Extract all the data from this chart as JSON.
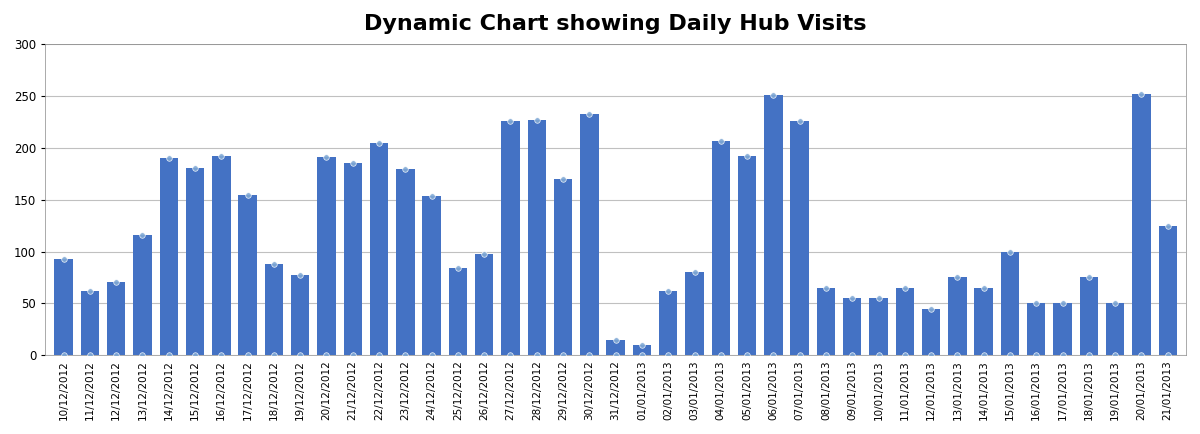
{
  "title": "Dynamic Chart showing Daily Hub Visits",
  "dates": [
    "10/12/2012",
    "11/12/2012",
    "12/12/2012",
    "13/12/2012",
    "14/12/2012",
    "15/12/2012",
    "16/12/2012",
    "17/12/2012",
    "18/12/2012",
    "19/12/2012",
    "20/12/2012",
    "21/12/2012",
    "22/12/2012",
    "23/12/2012",
    "24/12/2012",
    "25/12/2012",
    "26/12/2012",
    "27/12/2012",
    "28/12/2012",
    "29/12/2012",
    "30/12/2012",
    "31/12/2012",
    "01/01/2013",
    "02/01/2013",
    "03/01/2013",
    "04/01/2013",
    "05/01/2013",
    "06/01/2013",
    "07/01/2013",
    "08/01/2013",
    "09/01/2013",
    "10/01/2013",
    "11/01/2013",
    "12/01/2013",
    "13/01/2013",
    "14/01/2013",
    "15/01/2013",
    "16/01/2013",
    "17/01/2013",
    "18/01/2013",
    "19/01/2013",
    "20/01/2013",
    "21/01/2013"
  ],
  "values": [
    93,
    62,
    71,
    116,
    190,
    180,
    192,
    154,
    88,
    77,
    191,
    185,
    204,
    179,
    153,
    84,
    98,
    226,
    227,
    170,
    232,
    15,
    10,
    62,
    80,
    206,
    192,
    251,
    226,
    65,
    55,
    55,
    65,
    45,
    75,
    65,
    100,
    50,
    50,
    75,
    50,
    252,
    125
  ],
  "bar_color": "#4472C4",
  "marker_color": "#7FA8D4",
  "ylim": [
    0,
    300
  ],
  "yticks": [
    0,
    50,
    100,
    150,
    200,
    250,
    300
  ],
  "title_fontsize": 16,
  "bg_color": "#FFFFFF",
  "plot_bg_color": "#FFFFFF",
  "grid_color": "#C0C0C0",
  "tick_fontsize": 7.5
}
